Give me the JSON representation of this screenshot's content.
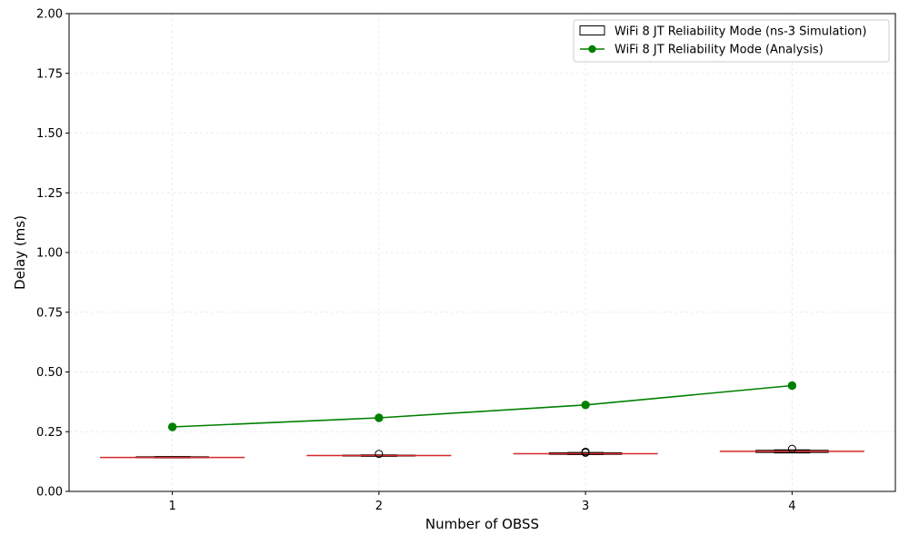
{
  "chart_data": {
    "type": "box",
    "title": "",
    "xlabel": "Number of OBSS",
    "ylabel": "Delay (ms)",
    "x": [
      1,
      2,
      3,
      4
    ],
    "xlim": [
      0.5,
      4.5
    ],
    "ylim": [
      0,
      2.0
    ],
    "y_ticks": [
      "0.00",
      "0.25",
      "0.50",
      "0.75",
      "1.00",
      "1.25",
      "1.50",
      "1.75",
      "2.00"
    ],
    "x_ticks": [
      "1",
      "2",
      "3",
      "4"
    ],
    "grid": true,
    "legend_position": "top-right",
    "series": [
      {
        "name": "WiFi 8 JT Reliability Mode (ns-3 Simulation)",
        "kind": "box",
        "color": "#000000",
        "median_color": "#d62728",
        "boxes": [
          {
            "x": 1,
            "q1": 0.141,
            "median": 0.142,
            "q3": 0.145,
            "whisker_low": 0.14,
            "whisker_high": 0.146,
            "outliers": []
          },
          {
            "x": 2,
            "q1": 0.148,
            "median": 0.15,
            "q3": 0.152,
            "whisker_low": 0.147,
            "whisker_high": 0.153,
            "outliers": [
              0.157
            ]
          },
          {
            "x": 3,
            "q1": 0.155,
            "median": 0.158,
            "q3": 0.162,
            "whisker_low": 0.154,
            "whisker_high": 0.163,
            "outliers": [
              0.162,
              0.166
            ]
          },
          {
            "x": 4,
            "q1": 0.163,
            "median": 0.168,
            "q3": 0.172,
            "whisker_low": 0.161,
            "whisker_high": 0.174,
            "outliers": [
              0.178
            ]
          }
        ]
      },
      {
        "name": "WiFi 8 JT Reliability Mode (Analysis)",
        "kind": "line",
        "color": "#008000",
        "x": [
          1,
          2,
          3,
          4
        ],
        "values": [
          0.27,
          0.308,
          0.362,
          0.443
        ]
      }
    ]
  }
}
